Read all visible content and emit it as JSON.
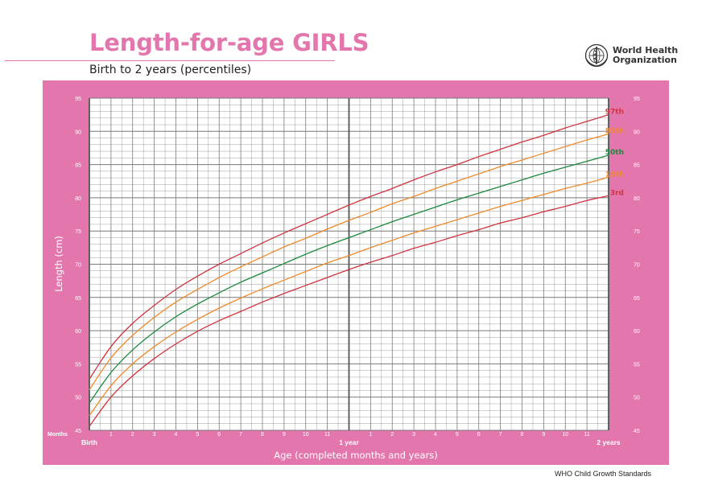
{
  "header": {
    "title": "Length-for-age GIRLS",
    "subtitle": "Birth to 2 years (percentiles)"
  },
  "organization": {
    "name_line1": "World Health",
    "name_line2": "Organization",
    "logo_icon": "who-emblem-icon"
  },
  "footer": {
    "text": "WHO Child Growth Standards"
  },
  "colors": {
    "frame": "#e377ad",
    "title": "#e377ad",
    "p97": "#d0343f",
    "p85": "#ef8a2a",
    "p50": "#1b8a3c",
    "p15": "#ef8a2a",
    "p3": "#d0343f",
    "grid": "#7a7a7a"
  },
  "chart_data": {
    "type": "line",
    "ylabel": "Length (cm)",
    "xlabel": "Age (completed months and years)",
    "months_label": "Months",
    "ylim": [
      45,
      95
    ],
    "xlim": [
      0,
      24
    ],
    "y_ticks": [
      "45",
      "50",
      "55",
      "60",
      "65",
      "70",
      "75",
      "80",
      "85",
      "90",
      "95"
    ],
    "month_ticks": [
      "1",
      "2",
      "3",
      "4",
      "5",
      "6",
      "7",
      "8",
      "9",
      "10",
      "11",
      "1",
      "2",
      "3",
      "4",
      "5",
      "6",
      "7",
      "8",
      "9",
      "10",
      "11"
    ],
    "year_labels": [
      {
        "x": 0,
        "label": "Birth"
      },
      {
        "x": 12,
        "label": "1 year"
      },
      {
        "x": 24,
        "label": "2 years"
      }
    ],
    "grid": true,
    "x": [
      0,
      1,
      2,
      3,
      4,
      5,
      6,
      7,
      8,
      9,
      10,
      11,
      12,
      13,
      14,
      15,
      16,
      17,
      18,
      19,
      20,
      21,
      22,
      23,
      24
    ],
    "series": [
      {
        "name": "97th",
        "color": "#d0343f",
        "values": [
          52.7,
          57.6,
          61.1,
          63.8,
          66.2,
          68.2,
          70.0,
          71.6,
          73.2,
          74.7,
          76.1,
          77.5,
          78.9,
          80.2,
          81.4,
          82.7,
          83.9,
          85.0,
          86.2,
          87.3,
          88.4,
          89.4,
          90.5,
          91.5,
          92.5
        ]
      },
      {
        "name": "85th",
        "color": "#ef8a2a",
        "values": [
          51.1,
          55.9,
          59.3,
          62.0,
          64.3,
          66.2,
          68.0,
          69.6,
          71.1,
          72.6,
          73.9,
          75.3,
          76.6,
          77.8,
          79.1,
          80.2,
          81.4,
          82.5,
          83.6,
          84.7,
          85.7,
          86.7,
          87.7,
          88.7,
          89.6
        ]
      },
      {
        "name": "50th",
        "color": "#1b8a3c",
        "values": [
          49.1,
          53.7,
          57.1,
          59.8,
          62.1,
          64.0,
          65.7,
          67.3,
          68.7,
          70.1,
          71.5,
          72.8,
          74.0,
          75.2,
          76.4,
          77.5,
          78.6,
          79.7,
          80.7,
          81.7,
          82.7,
          83.7,
          84.6,
          85.5,
          86.4
        ]
      },
      {
        "name": "15th",
        "color": "#ef8a2a",
        "values": [
          47.2,
          51.7,
          55.0,
          57.6,
          59.8,
          61.7,
          63.4,
          64.9,
          66.3,
          67.6,
          68.9,
          70.2,
          71.3,
          72.5,
          73.6,
          74.7,
          75.7,
          76.7,
          77.7,
          78.7,
          79.6,
          80.5,
          81.4,
          82.2,
          83.1
        ]
      },
      {
        "name": "3rd",
        "color": "#d0343f",
        "values": [
          45.6,
          50.0,
          53.2,
          55.8,
          58.0,
          59.9,
          61.5,
          62.9,
          64.3,
          65.6,
          66.8,
          68.0,
          69.2,
          70.3,
          71.3,
          72.4,
          73.3,
          74.3,
          75.2,
          76.2,
          77.0,
          77.9,
          78.7,
          79.6,
          80.3
        ]
      }
    ]
  }
}
